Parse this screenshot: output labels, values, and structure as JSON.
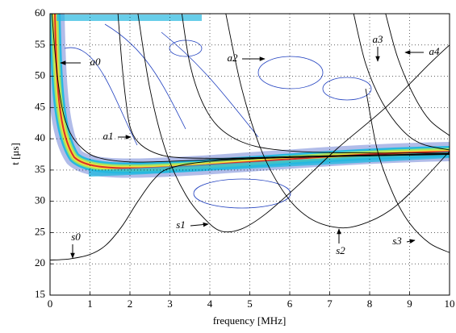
{
  "chart_data": {
    "type": "line",
    "x_label": "frequency [MHz]",
    "y_label": "t [μs]",
    "xlim": [
      0,
      10
    ],
    "ylim": [
      15,
      60
    ],
    "xticks": [
      0,
      1,
      2,
      3,
      4,
      5,
      6,
      7,
      8,
      9,
      10
    ],
    "yticks": [
      15,
      20,
      25,
      30,
      35,
      40,
      45,
      50,
      55,
      60
    ],
    "grid": true,
    "series": [
      {
        "name": "a0",
        "color": "#000000",
        "x": [
          0.05,
          0.15,
          0.3,
          0.5,
          0.8,
          1.2,
          2,
          3,
          5,
          7,
          10
        ],
        "values": [
          60,
          52,
          45,
          41,
          38.5,
          37,
          36.3,
          36.4,
          36.9,
          37.3,
          37.6
        ]
      },
      {
        "name": "a1",
        "color": "#000000",
        "x": [
          1.7,
          1.8,
          1.9,
          2.0,
          2.2,
          2.6,
          3.2,
          4.5,
          6.5,
          10
        ],
        "values": [
          60,
          52,
          46,
          42,
          39.5,
          37.8,
          37,
          36.9,
          37.2,
          37.6
        ]
      },
      {
        "name": "a2",
        "color": "#000000",
        "x": [
          3.3,
          3.5,
          3.8,
          4.2,
          4.8,
          5.6,
          7,
          10
        ],
        "values": [
          60,
          52,
          46,
          42,
          39.5,
          38.3,
          37.8,
          37.7
        ]
      },
      {
        "name": "a3",
        "color": "#000000",
        "x": [
          7.6,
          7.9,
          8.3,
          8.8,
          9.3,
          10
        ],
        "values": [
          60,
          52,
          46,
          41.5,
          39.2,
          38.2
        ]
      },
      {
        "name": "a4",
        "color": "#000000",
        "x": [
          8.4,
          8.7,
          9.1,
          9.5,
          10
        ],
        "values": [
          60,
          53,
          47,
          43,
          40.5
        ]
      },
      {
        "name": "s0",
        "color": "#000000",
        "x": [
          0,
          0.5,
          1,
          1.4,
          1.8,
          2.2,
          2.6,
          3,
          4,
          6,
          10
        ],
        "values": [
          20.6,
          20.8,
          21.5,
          23,
          26,
          30,
          33.5,
          35.3,
          36.4,
          37,
          37.5
        ]
      },
      {
        "name": "s1",
        "color": "#000000",
        "x": [
          2.2,
          2.5,
          2.9,
          3.4,
          3.9,
          4.3,
          4.8,
          5.4,
          6.2,
          7.2,
          8.4,
          9.5,
          10
        ],
        "values": [
          60,
          48,
          38,
          31,
          27,
          25.2,
          25.6,
          28,
          32.5,
          38.5,
          45,
          52,
          55
        ]
      },
      {
        "name": "s2",
        "color": "#000000",
        "x": [
          4.4,
          4.8,
          5.3,
          5.9,
          6.5,
          7.2,
          7.8,
          8.5,
          9.2,
          10
        ],
        "values": [
          60,
          48,
          38,
          31,
          27.3,
          25.8,
          26.3,
          28.5,
          32.5,
          38
        ]
      },
      {
        "name": "s3",
        "color": "#000000",
        "x": [
          7.9,
          8.2,
          8.6,
          9.0,
          9.5,
          10
        ],
        "values": [
          48,
          38,
          31,
          26.5,
          23.3,
          21.8
        ]
      }
    ]
  }
}
